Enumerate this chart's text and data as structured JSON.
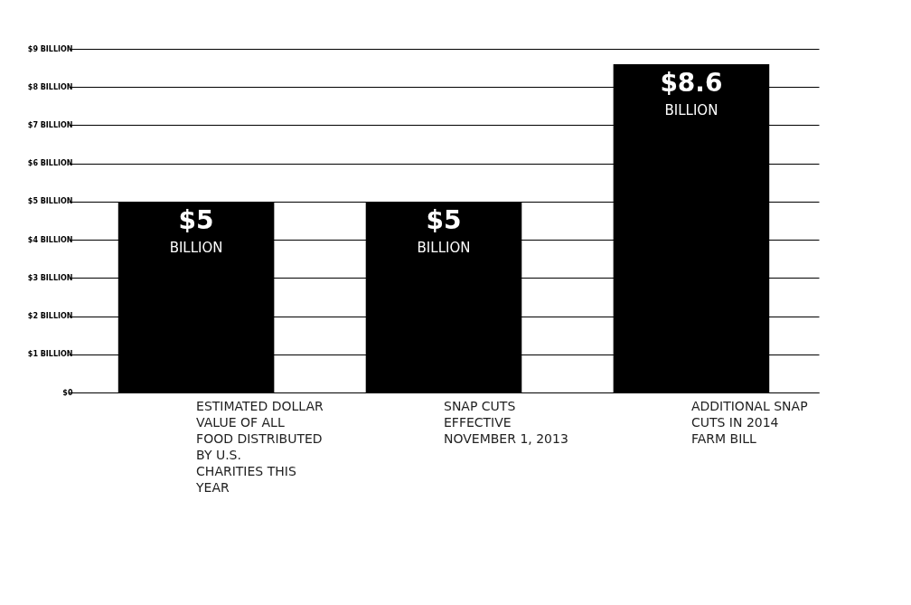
{
  "chart_data": {
    "type": "bar",
    "categories": [
      "ESTIMATED DOLLAR VALUE OF ALL FOOD DISTRIBUTED BY U.S. CHARITIES THIS YEAR",
      "SNAP CUTS EFFECTIVE NOVEMBER 1, 2013",
      "ADDITIONAL SNAP CUTS IN 2014 FARM BILL"
    ],
    "values": [
      5,
      5,
      8.6
    ],
    "color": "#000000",
    "value_labels": [
      "$5 BILLION",
      "$5 BILLION",
      "$8.6 BILLION"
    ],
    "ylim": [
      0,
      9
    ],
    "yticks": [
      {
        "value": 0,
        "label": "$0"
      },
      {
        "value": 1,
        "label": "$1 BILLION"
      },
      {
        "value": 2,
        "label": "$2 BILLION"
      },
      {
        "value": 3,
        "label": "$3 BILLION"
      },
      {
        "value": 4,
        "label": "$4 BILLION"
      },
      {
        "value": 5,
        "label": "$5 BILLION"
      },
      {
        "value": 6,
        "label": "$6 BILLION"
      },
      {
        "value": 7,
        "label": "$7 BILLION"
      },
      {
        "value": 8,
        "label": "$8 BILLION"
      },
      {
        "value": 9,
        "label": "$9 BILLION"
      }
    ],
    "grid": "y"
  }
}
